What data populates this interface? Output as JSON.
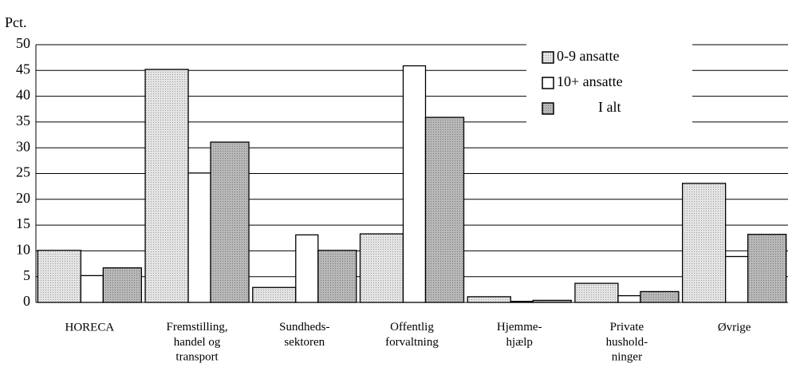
{
  "chart_data": {
    "type": "bar",
    "y_label": "Pct.",
    "categories": [
      "HORECA",
      "Fremstilling,\nhandel og\ntransport",
      "Sundheds-\nsektoren",
      "Offentlig\nforvaltning",
      "Hjemme-\nhjælp",
      "Private\nhushold-\nninger",
      "Øvrige"
    ],
    "series": [
      {
        "name": "0-9 ansatte",
        "color": "#e4e4e4",
        "fill_pattern": "dots",
        "values": [
          10.1,
          45.2,
          2.9,
          13.3,
          1.1,
          3.7,
          23.1
        ]
      },
      {
        "name": "10+ ansatte",
        "color": "#ffffff",
        "fill_pattern": "solid",
        "values": [
          5.2,
          25.1,
          13.1,
          45.9,
          0.2,
          1.3,
          8.9
        ]
      },
      {
        "name": "I alt",
        "color": "#b8b8b8",
        "fill_pattern": "dots",
        "values": [
          6.7,
          31.1,
          10.1,
          35.9,
          0.4,
          2.1,
          13.2
        ]
      }
    ],
    "ylim": [
      0,
      50
    ],
    "yticks": [
      0,
      5,
      10,
      15,
      20,
      25,
      30,
      35,
      40,
      45,
      50
    ],
    "grid": true,
    "legend": "upper right"
  }
}
